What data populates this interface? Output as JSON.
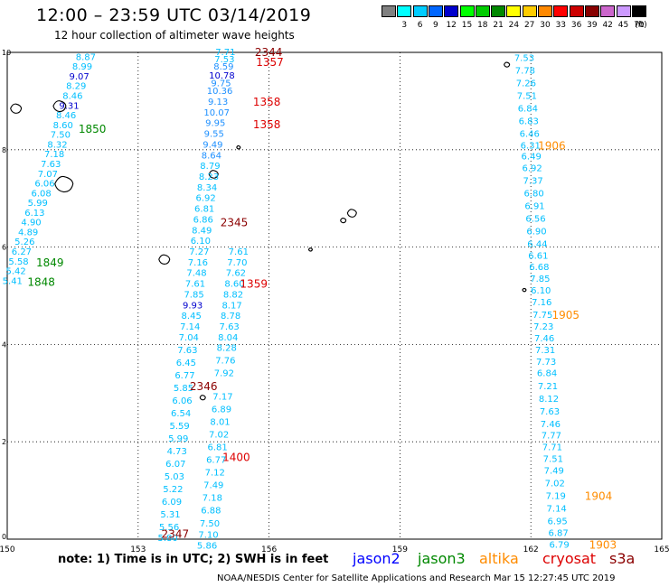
{
  "header": {
    "title": "12:00 – 23:59 UTC 03/14/2019",
    "subtitle": "12 hour collection of altimeter wave heights"
  },
  "color_legend": {
    "unit_label": "(ft)",
    "swatches": [
      {
        "label": "",
        "color": "#808080"
      },
      {
        "label": "3",
        "color": "#00ffff"
      },
      {
        "label": "6",
        "color": "#00ccff"
      },
      {
        "label": "9",
        "color": "#0066ff"
      },
      {
        "label": "12",
        "color": "#0000cc"
      },
      {
        "label": "15",
        "color": "#00ff00"
      },
      {
        "label": "18",
        "color": "#00cc00"
      },
      {
        "label": "21",
        "color": "#008800"
      },
      {
        "label": "24",
        "color": "#ffff00"
      },
      {
        "label": "27",
        "color": "#ffcc00"
      },
      {
        "label": "30",
        "color": "#ff8800"
      },
      {
        "label": "33",
        "color": "#ff0000"
      },
      {
        "label": "36",
        "color": "#cc0000"
      },
      {
        "label": "39",
        "color": "#880000"
      },
      {
        "label": "42",
        "color": "#cc66cc"
      },
      {
        "label": "45",
        "color": "#cc99ff"
      },
      {
        "label": "70",
        "color": "#000000"
      }
    ]
  },
  "axes": {
    "x_ticks": [
      "150",
      "153",
      "156",
      "159",
      "162",
      "165"
    ],
    "y_ticks": [
      "0",
      "2",
      "4",
      "6",
      "8",
      "10"
    ],
    "xlim": [
      150,
      165
    ],
    "ylim": [
      0,
      10
    ]
  },
  "colors": {
    "low": "#00bfff",
    "mid": "#1e90ff",
    "high": "#0000cd",
    "jason2": "#0000ff",
    "jason3": "#008800",
    "altika": "#ff8c00",
    "cryosat": "#dd0000",
    "s3a": "#8b0000",
    "land": "#000000"
  },
  "tracks": [
    {
      "name": "jason3-west",
      "points": [
        {
          "v": "8.87",
          "lon": 151.8,
          "lat": 9.9,
          "c": "low"
        },
        {
          "v": "8.99",
          "lon": 151.72,
          "lat": 9.7,
          "c": "low"
        },
        {
          "v": "9.07",
          "lon": 151.65,
          "lat": 9.5,
          "c": "high"
        },
        {
          "v": "8.29",
          "lon": 151.58,
          "lat": 9.3,
          "c": "low"
        },
        {
          "v": "8.46",
          "lon": 151.5,
          "lat": 9.1,
          "c": "low"
        },
        {
          "v": "9.31",
          "lon": 151.42,
          "lat": 8.9,
          "c": "high"
        },
        {
          "v": "8.46",
          "lon": 151.35,
          "lat": 8.7,
          "c": "low"
        },
        {
          "v": "8.60",
          "lon": 151.28,
          "lat": 8.5,
          "c": "low"
        },
        {
          "v": "7.50",
          "lon": 151.22,
          "lat": 8.3,
          "c": "low"
        },
        {
          "v": "8.32",
          "lon": 151.15,
          "lat": 8.1,
          "c": "low"
        },
        {
          "v": "7.18",
          "lon": 151.08,
          "lat": 7.9,
          "c": "low"
        },
        {
          "v": "7.63",
          "lon": 151.0,
          "lat": 7.7,
          "c": "low"
        },
        {
          "v": "7.07",
          "lon": 150.93,
          "lat": 7.5,
          "c": "low"
        },
        {
          "v": "6.06",
          "lon": 150.86,
          "lat": 7.3,
          "c": "low"
        },
        {
          "v": "6.08",
          "lon": 150.78,
          "lat": 7.1,
          "c": "low"
        },
        {
          "v": "5.99",
          "lon": 150.7,
          "lat": 6.9,
          "c": "low"
        },
        {
          "v": "6.13",
          "lon": 150.63,
          "lat": 6.7,
          "c": "low"
        },
        {
          "v": "4.90",
          "lon": 150.55,
          "lat": 6.5,
          "c": "low"
        },
        {
          "v": "4.89",
          "lon": 150.48,
          "lat": 6.3,
          "c": "low"
        },
        {
          "v": "5.26",
          "lon": 150.4,
          "lat": 6.1,
          "c": "low"
        },
        {
          "v": "6.27",
          "lon": 150.33,
          "lat": 5.9,
          "c": "low"
        },
        {
          "v": "5.58",
          "lon": 150.26,
          "lat": 5.7,
          "c": "low"
        },
        {
          "v": "5.42",
          "lon": 150.2,
          "lat": 5.5,
          "c": "low"
        },
        {
          "v": "5.41",
          "lon": 150.12,
          "lat": 5.3,
          "c": "low"
        }
      ]
    },
    {
      "name": "middle-track",
      "points": [
        {
          "v": "7.71",
          "lon": 155.0,
          "lat": 10.0,
          "c": "low"
        },
        {
          "v": "7.53",
          "lon": 154.98,
          "lat": 9.85,
          "c": "low"
        },
        {
          "v": "8.59",
          "lon": 154.96,
          "lat": 9.7,
          "c": "mid"
        },
        {
          "v": "10.78",
          "lon": 154.92,
          "lat": 9.52,
          "c": "high"
        },
        {
          "v": "9.75",
          "lon": 154.9,
          "lat": 9.36,
          "c": "mid"
        },
        {
          "v": "10.36",
          "lon": 154.87,
          "lat": 9.2,
          "c": "mid"
        },
        {
          "v": "9.13",
          "lon": 154.83,
          "lat": 8.98,
          "c": "mid"
        },
        {
          "v": "10.07",
          "lon": 154.8,
          "lat": 8.76,
          "c": "mid"
        },
        {
          "v": "9.95",
          "lon": 154.77,
          "lat": 8.54,
          "c": "mid"
        },
        {
          "v": "9.55",
          "lon": 154.74,
          "lat": 8.32,
          "c": "mid"
        },
        {
          "v": "9.49",
          "lon": 154.71,
          "lat": 8.1,
          "c": "mid"
        },
        {
          "v": "8.64",
          "lon": 154.68,
          "lat": 7.88,
          "c": "mid"
        },
        {
          "v": "8.79",
          "lon": 154.65,
          "lat": 7.66,
          "c": "low"
        },
        {
          "v": "8.23",
          "lon": 154.62,
          "lat": 7.44,
          "c": "low"
        },
        {
          "v": "8.34",
          "lon": 154.58,
          "lat": 7.22,
          "c": "low"
        },
        {
          "v": "6.92",
          "lon": 154.55,
          "lat": 7.0,
          "c": "low"
        },
        {
          "v": "6.81",
          "lon": 154.52,
          "lat": 6.78,
          "c": "low"
        },
        {
          "v": "6.86",
          "lon": 154.49,
          "lat": 6.56,
          "c": "low"
        },
        {
          "v": "8.49",
          "lon": 154.46,
          "lat": 6.34,
          "c": "low"
        },
        {
          "v": "6.10",
          "lon": 154.43,
          "lat": 6.12,
          "c": "low"
        },
        {
          "v": "7.27",
          "lon": 154.4,
          "lat": 5.9,
          "c": "low"
        },
        {
          "v": "7.16",
          "lon": 154.37,
          "lat": 5.68,
          "c": "low"
        },
        {
          "v": "7.48",
          "lon": 154.34,
          "lat": 5.46,
          "c": "low"
        },
        {
          "v": "7.61",
          "lon": 154.31,
          "lat": 5.24,
          "c": "low"
        },
        {
          "v": "7.85",
          "lon": 154.28,
          "lat": 5.02,
          "c": "low"
        },
        {
          "v": "9.93",
          "lon": 154.25,
          "lat": 4.8,
          "c": "high"
        },
        {
          "v": "8.45",
          "lon": 154.22,
          "lat": 4.58,
          "c": "low"
        },
        {
          "v": "7.14",
          "lon": 154.19,
          "lat": 4.36,
          "c": "low"
        },
        {
          "v": "7.04",
          "lon": 154.16,
          "lat": 4.14,
          "c": "low"
        },
        {
          "v": "7.63",
          "lon": 154.13,
          "lat": 3.88,
          "c": "low"
        },
        {
          "v": "6.45",
          "lon": 154.1,
          "lat": 3.62,
          "c": "low"
        },
        {
          "v": "6.77",
          "lon": 154.07,
          "lat": 3.36,
          "c": "low"
        },
        {
          "v": "5.85",
          "lon": 154.04,
          "lat": 3.1,
          "c": "low"
        },
        {
          "v": "6.06",
          "lon": 154.01,
          "lat": 2.84,
          "c": "low"
        },
        {
          "v": "6.54",
          "lon": 153.98,
          "lat": 2.58,
          "c": "low"
        },
        {
          "v": "5.59",
          "lon": 153.95,
          "lat": 2.32,
          "c": "low"
        },
        {
          "v": "5.99",
          "lon": 153.92,
          "lat": 2.06,
          "c": "low"
        },
        {
          "v": "4.73",
          "lon": 153.89,
          "lat": 1.8,
          "c": "low"
        },
        {
          "v": "6.07",
          "lon": 153.86,
          "lat": 1.54,
          "c": "low"
        },
        {
          "v": "5.03",
          "lon": 153.83,
          "lat": 1.28,
          "c": "low"
        },
        {
          "v": "5.22",
          "lon": 153.8,
          "lat": 1.02,
          "c": "low"
        },
        {
          "v": "6.09",
          "lon": 153.77,
          "lat": 0.76,
          "c": "low"
        },
        {
          "v": "5.31",
          "lon": 153.74,
          "lat": 0.5,
          "c": "low"
        },
        {
          "v": "5.56",
          "lon": 153.71,
          "lat": 0.24,
          "c": "low"
        },
        {
          "v": "5.80",
          "lon": 153.68,
          "lat": 0.02,
          "c": "low"
        }
      ]
    },
    {
      "name": "middle-track-east",
      "points": [
        {
          "v": "7.61",
          "lon": 155.3,
          "lat": 5.9,
          "c": "low"
        },
        {
          "v": "7.70",
          "lon": 155.27,
          "lat": 5.68,
          "c": "low"
        },
        {
          "v": "7.62",
          "lon": 155.24,
          "lat": 5.46,
          "c": "low"
        },
        {
          "v": "8.60",
          "lon": 155.21,
          "lat": 5.24,
          "c": "low"
        },
        {
          "v": "8.82",
          "lon": 155.18,
          "lat": 5.02,
          "c": "low"
        },
        {
          "v": "8.17",
          "lon": 155.15,
          "lat": 4.8,
          "c": "low"
        },
        {
          "v": "8.78",
          "lon": 155.12,
          "lat": 4.58,
          "c": "low"
        },
        {
          "v": "7.63",
          "lon": 155.09,
          "lat": 4.36,
          "c": "low"
        },
        {
          "v": "8.04",
          "lon": 155.06,
          "lat": 4.14,
          "c": "low"
        },
        {
          "v": "8.28",
          "lon": 155.03,
          "lat": 3.92,
          "c": "low"
        },
        {
          "v": "7.76",
          "lon": 155.0,
          "lat": 3.66,
          "c": "low"
        },
        {
          "v": "7.92",
          "lon": 154.97,
          "lat": 3.4,
          "c": "low"
        },
        {
          "v": "7.17",
          "lon": 154.94,
          "lat": 2.92,
          "c": "low"
        },
        {
          "v": "6.89",
          "lon": 154.91,
          "lat": 2.66,
          "c": "low"
        },
        {
          "v": "8.01",
          "lon": 154.88,
          "lat": 2.4,
          "c": "low"
        },
        {
          "v": "7.02",
          "lon": 154.85,
          "lat": 2.14,
          "c": "low"
        },
        {
          "v": "6.81",
          "lon": 154.82,
          "lat": 1.88,
          "c": "low"
        },
        {
          "v": "6.77",
          "lon": 154.79,
          "lat": 1.62,
          "c": "low"
        },
        {
          "v": "7.12",
          "lon": 154.76,
          "lat": 1.36,
          "c": "low"
        },
        {
          "v": "7.49",
          "lon": 154.73,
          "lat": 1.1,
          "c": "low"
        },
        {
          "v": "7.18",
          "lon": 154.7,
          "lat": 0.84,
          "c": "low"
        },
        {
          "v": "6.88",
          "lon": 154.67,
          "lat": 0.58,
          "c": "low"
        },
        {
          "v": "7.50",
          "lon": 154.64,
          "lat": 0.32,
          "c": "low"
        },
        {
          "v": "7.10",
          "lon": 154.61,
          "lat": 0.08,
          "c": "low"
        },
        {
          "v": "5.86",
          "lon": 154.58,
          "lat": -0.14,
          "c": "low"
        }
      ]
    },
    {
      "name": "east-track",
      "points": [
        {
          "v": "7.53",
          "lon": 161.85,
          "lat": 9.88,
          "c": "low"
        },
        {
          "v": "7.78",
          "lon": 161.87,
          "lat": 9.62,
          "c": "low"
        },
        {
          "v": "7.26",
          "lon": 161.89,
          "lat": 9.36,
          "c": "low"
        },
        {
          "v": "7.51",
          "lon": 161.91,
          "lat": 9.1,
          "c": "low"
        },
        {
          "v": "6.84",
          "lon": 161.93,
          "lat": 8.84,
          "c": "low"
        },
        {
          "v": "6.83",
          "lon": 161.95,
          "lat": 8.58,
          "c": "low"
        },
        {
          "v": "6.46",
          "lon": 161.97,
          "lat": 8.32,
          "c": "low"
        },
        {
          "v": "6.31",
          "lon": 161.99,
          "lat": 8.08,
          "c": "low"
        },
        {
          "v": "6.49",
          "lon": 162.01,
          "lat": 7.86,
          "c": "low"
        },
        {
          "v": "6.92",
          "lon": 162.03,
          "lat": 7.62,
          "c": "low"
        },
        {
          "v": "7.37",
          "lon": 162.05,
          "lat": 7.36,
          "c": "low"
        },
        {
          "v": "6.80",
          "lon": 162.07,
          "lat": 7.1,
          "c": "low"
        },
        {
          "v": "6.91",
          "lon": 162.09,
          "lat": 6.84,
          "c": "low"
        },
        {
          "v": "6.56",
          "lon": 162.11,
          "lat": 6.58,
          "c": "low"
        },
        {
          "v": "6.90",
          "lon": 162.13,
          "lat": 6.32,
          "c": "low"
        },
        {
          "v": "6.44",
          "lon": 162.15,
          "lat": 6.06,
          "c": "low"
        },
        {
          "v": "6.61",
          "lon": 162.17,
          "lat": 5.82,
          "c": "low"
        },
        {
          "v": "6.68",
          "lon": 162.19,
          "lat": 5.58,
          "c": "low"
        },
        {
          "v": "7.85",
          "lon": 162.21,
          "lat": 5.34,
          "c": "low"
        },
        {
          "v": "6.10",
          "lon": 162.23,
          "lat": 5.1,
          "c": "low"
        },
        {
          "v": "7.16",
          "lon": 162.25,
          "lat": 4.86,
          "c": "low"
        },
        {
          "v": "7.75",
          "lon": 162.27,
          "lat": 4.6,
          "c": "low"
        },
        {
          "v": "7.23",
          "lon": 162.29,
          "lat": 4.36,
          "c": "low"
        },
        {
          "v": "7.46",
          "lon": 162.31,
          "lat": 4.12,
          "c": "low"
        },
        {
          "v": "7.31",
          "lon": 162.33,
          "lat": 3.88,
          "c": "low"
        },
        {
          "v": "7.73",
          "lon": 162.35,
          "lat": 3.64,
          "c": "low"
        },
        {
          "v": "6.84",
          "lon": 162.37,
          "lat": 3.4,
          "c": "low"
        },
        {
          "v": "7.21",
          "lon": 162.39,
          "lat": 3.14,
          "c": "low"
        },
        {
          "v": "8.12",
          "lon": 162.41,
          "lat": 2.88,
          "c": "low"
        },
        {
          "v": "7.63",
          "lon": 162.43,
          "lat": 2.62,
          "c": "low"
        },
        {
          "v": "7.46",
          "lon": 162.45,
          "lat": 2.36,
          "c": "low"
        },
        {
          "v": "7.77",
          "lon": 162.47,
          "lat": 2.12,
          "c": "low"
        },
        {
          "v": "7.71",
          "lon": 162.49,
          "lat": 1.88,
          "c": "low"
        },
        {
          "v": "7.51",
          "lon": 162.51,
          "lat": 1.64,
          "c": "low"
        },
        {
          "v": "7.49",
          "lon": 162.53,
          "lat": 1.4,
          "c": "low"
        },
        {
          "v": "7.02",
          "lon": 162.55,
          "lat": 1.14,
          "c": "low"
        },
        {
          "v": "7.19",
          "lon": 162.57,
          "lat": 0.88,
          "c": "low"
        },
        {
          "v": "7.14",
          "lon": 162.59,
          "lat": 0.62,
          "c": "low"
        },
        {
          "v": "6.95",
          "lon": 162.61,
          "lat": 0.36,
          "c": "low"
        },
        {
          "v": "6.87",
          "lon": 162.63,
          "lat": 0.12,
          "c": "low"
        },
        {
          "v": "6.79",
          "lon": 162.65,
          "lat": -0.12,
          "c": "low"
        }
      ]
    }
  ],
  "time_labels": [
    {
      "text": "2344",
      "lon": 155.99,
      "lat": 10.0,
      "c": "s3a"
    },
    {
      "text": "1357",
      "lon": 156.02,
      "lat": 9.8,
      "c": "cryosat"
    },
    {
      "text": "1850",
      "lon": 151.95,
      "lat": 8.42,
      "c": "jason3"
    },
    {
      "text": "1358",
      "lon": 155.95,
      "lat": 8.98,
      "c": "cryosat"
    },
    {
      "text": "1358",
      "lon": 155.95,
      "lat": 8.52,
      "c": "cryosat"
    },
    {
      "text": "1906",
      "lon": 162.48,
      "lat": 8.08,
      "c": "altika"
    },
    {
      "text": "2345",
      "lon": 155.2,
      "lat": 6.5,
      "c": "s3a"
    },
    {
      "text": "1849",
      "lon": 150.98,
      "lat": 5.68,
      "c": "jason3"
    },
    {
      "text": "1848",
      "lon": 150.78,
      "lat": 5.28,
      "c": "jason3"
    },
    {
      "text": "1359",
      "lon": 155.65,
      "lat": 5.24,
      "c": "cryosat"
    },
    {
      "text": "1905",
      "lon": 162.8,
      "lat": 4.6,
      "c": "altika"
    },
    {
      "text": "2346",
      "lon": 154.5,
      "lat": 3.14,
      "c": "s3a"
    },
    {
      "text": "1400",
      "lon": 155.25,
      "lat": 1.68,
      "c": "cryosat"
    },
    {
      "text": "1904",
      "lon": 163.55,
      "lat": 0.88,
      "c": "altika"
    },
    {
      "text": "2347",
      "lon": 153.85,
      "lat": 0.1,
      "c": "s3a"
    },
    {
      "text": "1903",
      "lon": 163.65,
      "lat": -0.12,
      "c": "altika"
    }
  ],
  "footer": {
    "note": "note:  1) Time is in UTC;  2) SWH is in feet",
    "satellites": [
      {
        "name": "jason2",
        "c": "jason2"
      },
      {
        "name": "jason3",
        "c": "jason3"
      },
      {
        "name": "altika",
        "c": "altika"
      },
      {
        "name": "cryosat",
        "c": "cryosat"
      },
      {
        "name": "s3a",
        "c": "s3a"
      }
    ],
    "credit": "NOAA/NESDIS Center for Satellite Applications and Research    Mar 15 12:27:45 UTC 2019"
  }
}
